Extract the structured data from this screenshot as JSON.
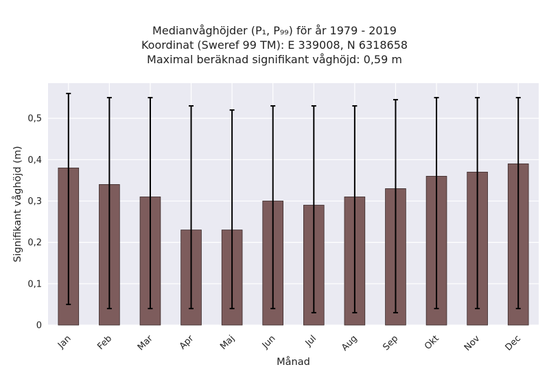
{
  "chart_data": {
    "type": "bar",
    "title_lines": [
      "Medianvåghöjder (P₁, P₉₉) för år 1979 - 2019",
      "Koordinat (Sweref 99 TM): E 339008, N 6318658",
      "Maximal beräknad signifikant våghöjd: 0,59 m"
    ],
    "xlabel": "Månad",
    "ylabel": "Signifikant våghöjd (m)",
    "categories": [
      "Jan",
      "Feb",
      "Mar",
      "Apr",
      "Maj",
      "Jun",
      "Jul",
      "Aug",
      "Sep",
      "Okt",
      "Nov",
      "Dec"
    ],
    "values": [
      0.38,
      0.34,
      0.31,
      0.23,
      0.23,
      0.3,
      0.29,
      0.31,
      0.33,
      0.36,
      0.37,
      0.39
    ],
    "error_low": [
      0.05,
      0.04,
      0.04,
      0.04,
      0.04,
      0.04,
      0.03,
      0.03,
      0.03,
      0.04,
      0.04,
      0.04
    ],
    "error_high": [
      0.56,
      0.55,
      0.55,
      0.53,
      0.52,
      0.53,
      0.53,
      0.53,
      0.545,
      0.55,
      0.55,
      0.55
    ],
    "ylim": [
      0,
      0.585
    ],
    "yticks": [
      0,
      0.1,
      0.2,
      0.3,
      0.4,
      0.5
    ],
    "ytick_labels": [
      "0",
      "0,1",
      "0,2",
      "0,3",
      "0,4",
      "0,5"
    ],
    "grid": true,
    "colors": {
      "bar": "#7d5c5c",
      "bar_edge": "#3a2a2a",
      "background": "#eaeaf2",
      "grid": "#ffffff",
      "errorbar": "#000000"
    }
  }
}
